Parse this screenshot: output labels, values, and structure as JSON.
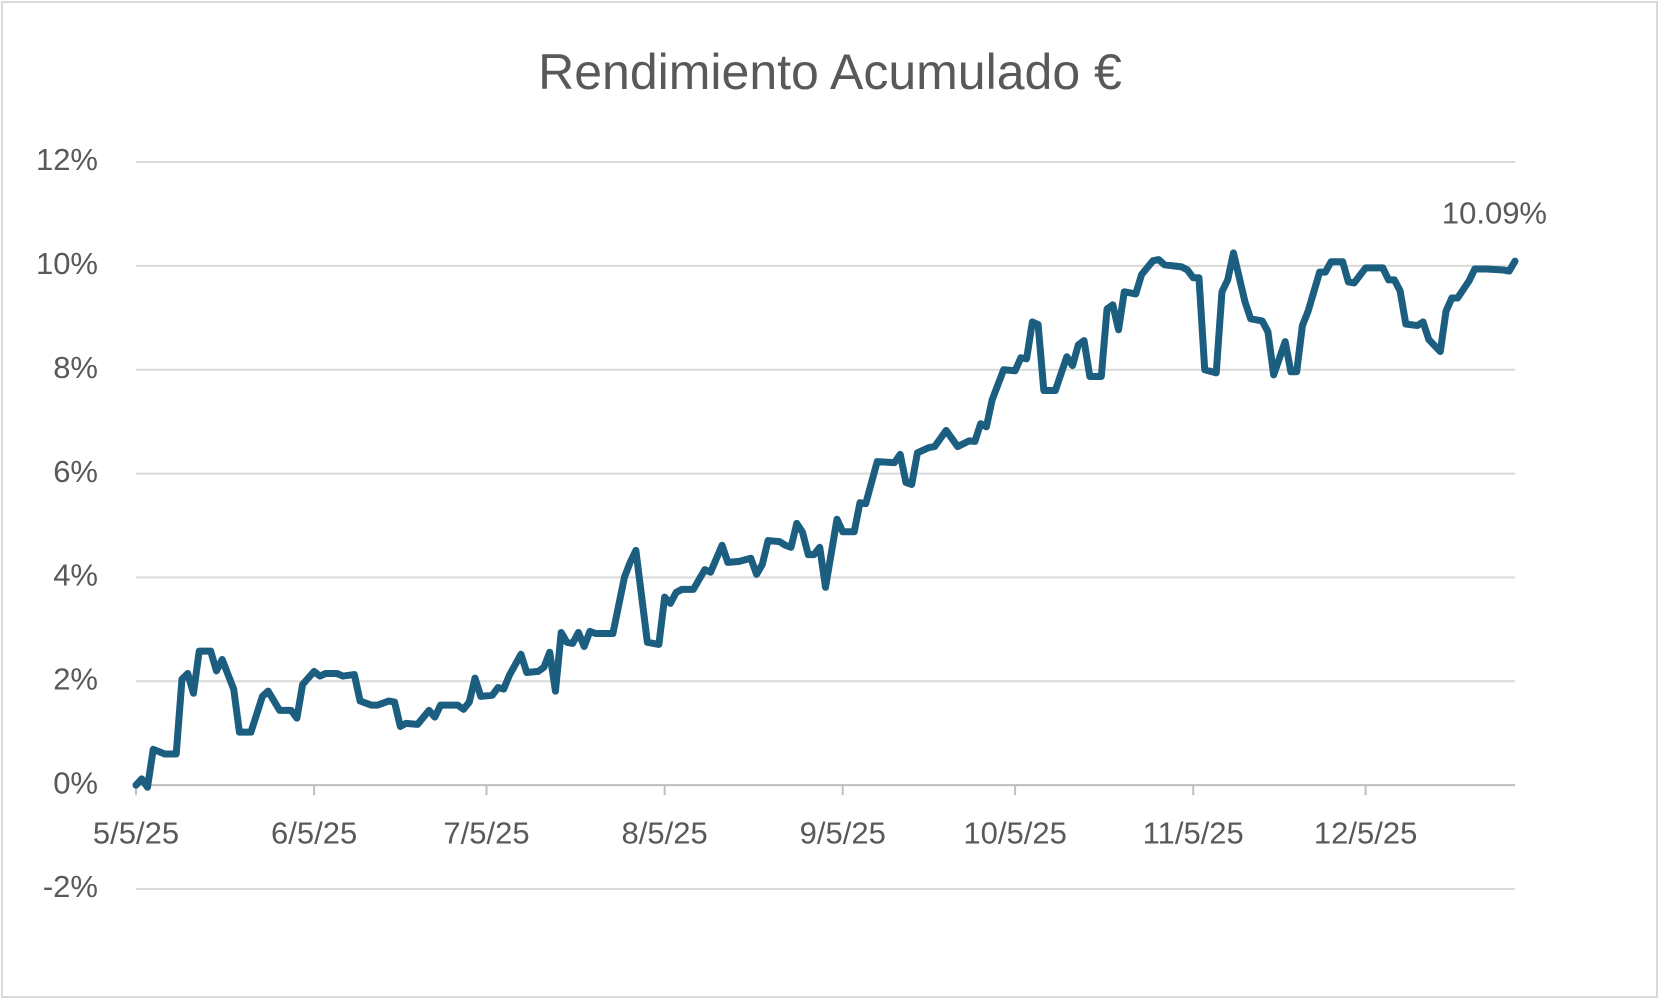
{
  "chart_data": {
    "type": "line",
    "title": "Rendimiento Acumulado €",
    "x": [
      "2025-05-05",
      "2025-05-06",
      "2025-05-07",
      "2025-05-08",
      "2025-05-10",
      "2025-05-12",
      "2025-05-13",
      "2025-05-14",
      "2025-05-15",
      "2025-05-16",
      "2025-05-18",
      "2025-05-19",
      "2025-05-20",
      "2025-05-22",
      "2025-05-23",
      "2025-05-25",
      "2025-05-27",
      "2025-05-28",
      "2025-05-30",
      "2025-06-01",
      "2025-06-02",
      "2025-06-03",
      "2025-06-05",
      "2025-06-06",
      "2025-06-07",
      "2025-06-09",
      "2025-06-10",
      "2025-06-12",
      "2025-06-13",
      "2025-06-15",
      "2025-06-16",
      "2025-06-18",
      "2025-06-19",
      "2025-06-20",
      "2025-06-21",
      "2025-06-23",
      "2025-06-25",
      "2025-06-26",
      "2025-06-27",
      "2025-06-30",
      "2025-07-01",
      "2025-07-02",
      "2025-07-03",
      "2025-07-04",
      "2025-07-06",
      "2025-07-07",
      "2025-07-08",
      "2025-07-09",
      "2025-07-11",
      "2025-07-12",
      "2025-07-14",
      "2025-07-15",
      "2025-07-16",
      "2025-07-17",
      "2025-07-18",
      "2025-07-19",
      "2025-07-20",
      "2025-07-21",
      "2025-07-22",
      "2025-07-23",
      "2025-07-24",
      "2025-07-27",
      "2025-07-29",
      "2025-07-30",
      "2025-07-31",
      "2025-08-02",
      "2025-08-04",
      "2025-08-05",
      "2025-08-06",
      "2025-08-07",
      "2025-08-08",
      "2025-08-10",
      "2025-08-12",
      "2025-08-13",
      "2025-08-15",
      "2025-08-16",
      "2025-08-18",
      "2025-08-20",
      "2025-08-21",
      "2025-08-22",
      "2025-08-23",
      "2025-08-25",
      "2025-08-26",
      "2025-08-27",
      "2025-08-28",
      "2025-08-29",
      "2025-08-30",
      "2025-08-31",
      "2025-09-01",
      "2025-09-02",
      "2025-09-04",
      "2025-09-05",
      "2025-09-07",
      "2025-09-08",
      "2025-09-09",
      "2025-09-11",
      "2025-09-14",
      "2025-09-15",
      "2025-09-16",
      "2025-09-17",
      "2025-09-18",
      "2025-09-20",
      "2025-09-21",
      "2025-09-23",
      "2025-09-25",
      "2025-09-27",
      "2025-09-28",
      "2025-09-29",
      "2025-09-30",
      "2025-10-01",
      "2025-10-03",
      "2025-10-05",
      "2025-10-06",
      "2025-10-07",
      "2025-10-08",
      "2025-10-09",
      "2025-10-10",
      "2025-10-12",
      "2025-10-14",
      "2025-10-15",
      "2025-10-16",
      "2025-10-17",
      "2025-10-18",
      "2025-10-20",
      "2025-10-21",
      "2025-10-22",
      "2025-10-23",
      "2025-10-24",
      "2025-10-26",
      "2025-10-27",
      "2025-10-29",
      "2025-10-30",
      "2025-10-31",
      "2025-11-03",
      "2025-11-04",
      "2025-11-05",
      "2025-11-06",
      "2025-11-07",
      "2025-11-09",
      "2025-11-10",
      "2025-11-11",
      "2025-11-12",
      "2025-11-14",
      "2025-11-15",
      "2025-11-17",
      "2025-11-18",
      "2025-11-19",
      "2025-11-21",
      "2025-11-22",
      "2025-11-23",
      "2025-11-24",
      "2025-11-25",
      "2025-11-27",
      "2025-11-28",
      "2025-11-29",
      "2025-12-01",
      "2025-12-02",
      "2025-12-03",
      "2025-12-05",
      "2025-12-08",
      "2025-12-09",
      "2025-12-10",
      "2025-12-11",
      "2025-12-12",
      "2025-12-14",
      "2025-12-15",
      "2025-12-16",
      "2025-12-18",
      "2025-12-19",
      "2025-12-20",
      "2025-12-21",
      "2025-12-23",
      "2025-12-24",
      "2025-12-26",
      "2025-12-29",
      "2025-12-30",
      "2025-12-31"
    ],
    "series": [
      {
        "color": "#1b5e80",
        "values": [
          0,
          0.12,
          -0.04,
          0.69,
          0.6,
          0.6,
          2.04,
          2.15,
          1.77,
          2.58,
          2.58,
          2.2,
          2.42,
          1.85,
          1.02,
          1.02,
          1.71,
          1.81,
          1.44,
          1.44,
          1.29,
          1.94,
          2.19,
          2.1,
          2.15,
          2.15,
          2.1,
          2.13,
          1.62,
          1.54,
          1.54,
          1.62,
          1.6,
          1.13,
          1.19,
          1.17,
          1.44,
          1.31,
          1.54,
          1.54,
          1.46,
          1.6,
          2.06,
          1.71,
          1.73,
          1.88,
          1.85,
          2.12,
          2.52,
          2.17,
          2.19,
          2.27,
          2.56,
          1.81,
          2.94,
          2.75,
          2.73,
          2.94,
          2.67,
          2.96,
          2.92,
          2.92,
          4.0,
          4.29,
          4.52,
          2.75,
          2.71,
          3.62,
          3.5,
          3.71,
          3.77,
          3.77,
          4.15,
          4.1,
          4.62,
          4.29,
          4.31,
          4.37,
          4.06,
          4.25,
          4.71,
          4.69,
          4.62,
          4.58,
          5.04,
          4.87,
          4.44,
          4.44,
          4.58,
          3.81,
          5.12,
          4.88,
          4.88,
          5.44,
          5.42,
          6.23,
          6.21,
          6.37,
          5.83,
          5.79,
          6.4,
          6.5,
          6.52,
          6.83,
          6.52,
          6.63,
          6.62,
          6.96,
          6.9,
          7.42,
          8.0,
          7.98,
          8.23,
          8.21,
          8.92,
          8.87,
          7.6,
          7.6,
          8.25,
          8.08,
          8.48,
          8.56,
          7.87,
          7.87,
          9.17,
          9.25,
          8.77,
          9.5,
          9.46,
          9.83,
          10.1,
          10.12,
          10.02,
          9.98,
          9.92,
          9.77,
          9.77,
          8.0,
          7.94,
          9.5,
          9.73,
          10.25,
          9.31,
          8.98,
          8.94,
          8.73,
          7.9,
          8.54,
          7.96,
          7.96,
          8.85,
          9.13,
          9.88,
          9.88,
          10.08,
          10.08,
          9.69,
          9.67,
          9.96,
          9.96,
          9.73,
          9.73,
          9.52,
          8.88,
          8.85,
          8.92,
          8.58,
          8.35,
          9.13,
          9.38,
          9.38,
          9.71,
          9.94,
          9.94,
          9.92,
          9.9,
          10.09
        ]
      }
    ],
    "annotations": [
      {
        "x": "2025-12-31",
        "y": 10.09,
        "text": "10.09%"
      }
    ],
    "xlim": [
      "2025-05-05",
      "2025-12-31"
    ],
    "xticks": [
      {
        "value": "2025-05-05",
        "label": "5/5/25"
      },
      {
        "value": "2025-06-05",
        "label": "6/5/25"
      },
      {
        "value": "2025-07-05",
        "label": "7/5/25"
      },
      {
        "value": "2025-08-05",
        "label": "8/5/25"
      },
      {
        "value": "2025-09-05",
        "label": "9/5/25"
      },
      {
        "value": "2025-10-05",
        "label": "10/5/25"
      },
      {
        "value": "2025-11-05",
        "label": "11/5/25"
      },
      {
        "value": "2025-12-05",
        "label": "12/5/25"
      }
    ],
    "ylim": [
      -2,
      12
    ],
    "yticks": [
      {
        "value": -2,
        "label": "-2%"
      },
      {
        "value": 0,
        "label": "0%"
      },
      {
        "value": 2,
        "label": "2%"
      },
      {
        "value": 4,
        "label": "4%"
      },
      {
        "value": 6,
        "label": "6%"
      },
      {
        "value": 8,
        "label": "8%"
      },
      {
        "value": 10,
        "label": "10%"
      },
      {
        "value": 12,
        "label": "12%"
      }
    ],
    "grid": true
  }
}
